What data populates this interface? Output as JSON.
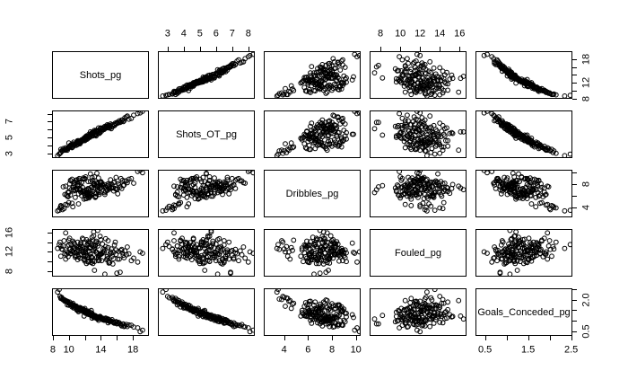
{
  "figure": {
    "background": "#ffffff",
    "foreground": "#000000",
    "description": "R pairs() scatterplot matrix of per-game football statistics"
  },
  "chart_data": {
    "type": "scatter",
    "subtype": "scatterplot-matrix",
    "title": "",
    "legend": "none",
    "grid": false,
    "variables": [
      "Shots_pg",
      "Shots_OT_pg",
      "Dribbles_pg",
      "Fouled_pg",
      "Goals_Conceded_pg"
    ],
    "axis_domains": [
      [
        7.9,
        20.0
      ],
      [
        2.4,
        8.4
      ],
      [
        2.3,
        10.4
      ],
      [
        6.9,
        16.7
      ],
      [
        0.28,
        2.53
      ]
    ],
    "axes": [
      {
        "side": "top",
        "index": 1,
        "var": 1,
        "ticks": [
          3,
          4,
          5,
          6,
          7,
          8
        ],
        "labels": [
          "3",
          "4",
          "5",
          "6",
          "7",
          "8"
        ]
      },
      {
        "side": "top",
        "index": 3,
        "var": 3,
        "ticks": [
          8,
          10,
          12,
          14,
          16
        ],
        "labels": [
          "8",
          "10",
          "12",
          "14",
          "16"
        ]
      },
      {
        "side": "bottom",
        "index": 0,
        "var": 0,
        "ticks": [
          8,
          10,
          12,
          14,
          16,
          18
        ],
        "labels": [
          "8",
          "10",
          "",
          "14",
          "",
          "18"
        ]
      },
      {
        "side": "bottom",
        "index": 2,
        "var": 2,
        "ticks": [
          4,
          6,
          8,
          10
        ],
        "labels": [
          "4",
          "6",
          "8",
          "10"
        ]
      },
      {
        "side": "bottom",
        "index": 4,
        "var": 4,
        "ticks": [
          0.5,
          1,
          1.5,
          2,
          2.5
        ],
        "labels": [
          "0.5",
          "",
          "1.5",
          "",
          "2.5"
        ]
      },
      {
        "side": "left",
        "index": 1,
        "var": 1,
        "ticks": [
          3,
          4,
          5,
          6,
          7,
          8
        ],
        "labels": [
          "3",
          "",
          "5",
          "",
          "7",
          ""
        ]
      },
      {
        "side": "left",
        "index": 3,
        "var": 3,
        "ticks": [
          8,
          10,
          12,
          14,
          16
        ],
        "labels": [
          "8",
          "",
          "12",
          "",
          "16"
        ]
      },
      {
        "side": "right",
        "index": 0,
        "var": 0,
        "ticks": [
          8,
          10,
          12,
          14,
          16,
          18
        ],
        "labels": [
          "8",
          "",
          "12",
          "",
          "",
          "18"
        ]
      },
      {
        "side": "right",
        "index": 2,
        "var": 2,
        "ticks": [
          4,
          6,
          8,
          10
        ],
        "labels": [
          "4",
          "",
          "8",
          ""
        ]
      },
      {
        "side": "right",
        "index": 4,
        "var": 4,
        "ticks": [
          0.5,
          1,
          1.5,
          2,
          2.5
        ],
        "labels": [
          "0.5",
          "",
          "",
          "2.0",
          ""
        ]
      }
    ],
    "point_style": {
      "shape": "open-circle",
      "color": "#000000",
      "radius": 2.4
    },
    "records": [
      [
        11.2,
        4.6,
        6.3,
        12.0,
        1.42
      ],
      [
        13.5,
        5.8,
        7.6,
        10.9,
        1.1
      ],
      [
        9.8,
        3.6,
        5.9,
        13.2,
        1.75
      ],
      [
        15.1,
        6.2,
        7.1,
        11.5,
        0.95
      ],
      [
        12.4,
        5.1,
        8.4,
        14.1,
        1.3
      ],
      [
        10.6,
        4.0,
        6.8,
        12.7,
        1.6
      ],
      [
        17.8,
        7.4,
        8.9,
        10.2,
        0.78
      ],
      [
        11.9,
        4.9,
        5.4,
        11.1,
        1.22
      ],
      [
        14.2,
        6.0,
        7.9,
        13.6,
        1.05
      ],
      [
        12.8,
        5.3,
        6.1,
        9.8,
        1.48
      ],
      [
        10.1,
        3.9,
        7.3,
        14.8,
        1.88
      ],
      [
        13.1,
        5.5,
        8.1,
        12.3,
        1.15
      ],
      [
        16.4,
        6.9,
        7.5,
        7.8,
        0.85
      ],
      [
        11.5,
        4.4,
        6.6,
        13.9,
        1.55
      ],
      [
        12.1,
        4.8,
        9.2,
        11.8,
        1.35
      ],
      [
        9.2,
        3.3,
        3.6,
        12.5,
        2.02
      ],
      [
        14.8,
        6.4,
        6.9,
        10.6,
        1.0
      ],
      [
        13.9,
        5.6,
        7.2,
        15.2,
        1.18
      ],
      [
        10.9,
        4.2,
        8.6,
        11.3,
        1.7
      ],
      [
        18.6,
        8.0,
        10.1,
        9.9,
        0.66
      ],
      [
        12.6,
        5.0,
        6.4,
        12.9,
        1.28
      ],
      [
        11.1,
        4.5,
        7.7,
        10.4,
        1.52
      ],
      [
        15.6,
        6.6,
        8.2,
        11.9,
        0.92
      ],
      [
        13.3,
        5.4,
        5.7,
        13.4,
        1.24
      ],
      [
        9.5,
        3.5,
        6.2,
        11.6,
        1.92
      ],
      [
        12.2,
        5.2,
        7.0,
        14.5,
        1.38
      ],
      [
        16.9,
        7.1,
        7.8,
        10.8,
        0.72
      ],
      [
        10.4,
        3.8,
        8.8,
        12.2,
        1.65
      ],
      [
        14.5,
        6.1,
        6.5,
        7.4,
        1.08
      ],
      [
        11.7,
        4.7,
        7.4,
        13.0,
        1.45
      ],
      [
        13.7,
        5.9,
        9.0,
        11.2,
        1.02
      ],
      [
        8.9,
        3.0,
        3.9,
        14.0,
        2.15
      ],
      [
        15.3,
        6.3,
        7.3,
        12.6,
        0.98
      ],
      [
        12.0,
        4.9,
        6.0,
        10.1,
        1.58
      ],
      [
        10.7,
        4.1,
        8.3,
        13.7,
        1.72
      ],
      [
        17.2,
        7.6,
        8.5,
        11.4,
        0.82
      ],
      [
        13.0,
        5.2,
        6.7,
        9.6,
        1.2
      ],
      [
        11.4,
        4.3,
        7.1,
        12.8,
        1.62
      ],
      [
        14.9,
        6.5,
        8.0,
        14.3,
        0.9
      ],
      [
        9.9,
        3.7,
        5.8,
        11.0,
        1.85
      ],
      [
        12.9,
        5.6,
        7.5,
        13.3,
        1.12
      ],
      [
        16.1,
        6.8,
        6.3,
        10.5,
        0.88
      ],
      [
        11.0,
        4.4,
        8.7,
        12.1,
        1.5
      ],
      [
        13.6,
        5.7,
        7.0,
        16.4,
        1.08
      ],
      [
        10.2,
        4.0,
        6.1,
        11.7,
        1.78
      ],
      [
        15.9,
        6.7,
        9.1,
        12.4,
        0.95
      ],
      [
        12.5,
        5.0,
        5.6,
        10.0,
        1.32
      ],
      [
        9.0,
        3.1,
        4.2,
        13.1,
        2.08
      ],
      [
        14.0,
        6.2,
        8.4,
        11.5,
        1.15
      ],
      [
        11.8,
        4.6,
        6.8,
        14.6,
        1.42
      ],
      [
        13.2,
        5.3,
        7.7,
        8.2,
        1.25
      ],
      [
        10.5,
        4.2,
        4.1,
        12.0,
        1.68
      ],
      [
        18.1,
        7.8,
        8.1,
        10.7,
        0.7
      ],
      [
        12.3,
        4.8,
        6.6,
        13.5,
        1.35
      ],
      [
        15.4,
        6.6,
        7.9,
        11.1,
        1.05
      ],
      [
        11.3,
        4.5,
        8.9,
        12.3,
        1.48
      ],
      [
        13.8,
        5.5,
        6.2,
        10.3,
        1.18
      ],
      [
        9.6,
        3.4,
        7.6,
        15.9,
        1.95
      ],
      [
        14.4,
        6.0,
        7.4,
        11.8,
        1.02
      ],
      [
        12.7,
        5.4,
        9.7,
        13.8,
        1.28
      ],
      [
        10.8,
        4.1,
        6.9,
        10.9,
        1.62
      ],
      [
        16.6,
        7.2,
        7.2,
        12.5,
        0.75
      ],
      [
        11.6,
        4.7,
        8.2,
        11.4,
        1.55
      ],
      [
        13.4,
        5.8,
        5.9,
        14.2,
        1.2
      ],
      [
        8.6,
        2.7,
        3.4,
        12.7,
        2.35
      ],
      [
        15.0,
        6.3,
        7.8,
        9.7,
        0.98
      ],
      [
        12.1,
        5.1,
        6.5,
        11.2,
        1.4
      ],
      [
        10.3,
        3.9,
        8.5,
        13.6,
        1.75
      ],
      [
        14.7,
        6.4,
        7.1,
        10.4,
        1.1
      ],
      [
        11.2,
        4.3,
        4.6,
        12.9,
        1.58
      ],
      [
        13.1,
        5.7,
        7.3,
        16.1,
        1.22
      ],
      [
        17.5,
        7.3,
        8.8,
        11.6,
        0.8
      ],
      [
        12.4,
        5.2,
        6.0,
        9.9,
        1.45
      ],
      [
        9.3,
        3.6,
        7.5,
        13.2,
        1.98
      ],
      [
        16.2,
        6.9,
        8.0,
        12.1,
        0.92
      ],
      [
        11.9,
        4.8,
        6.7,
        10.6,
        1.52
      ],
      [
        13.5,
        5.4,
        9.8,
        11.9,
        1.15
      ],
      [
        10.0,
        3.8,
        4.8,
        14.4,
        1.82
      ],
      [
        14.3,
        6.1,
        7.6,
        12.6,
        1.05
      ],
      [
        12.8,
        5.5,
        6.3,
        11.0,
        1.3
      ],
      [
        15.7,
        6.5,
        8.3,
        13.4,
        0.88
      ],
      [
        11.5,
        4.4,
        7.0,
        12.2,
        1.6
      ],
      [
        13.0,
        5.6,
        8.6,
        10.1,
        1.25
      ],
      [
        9.7,
        3.5,
        6.1,
        11.5,
        1.9
      ],
      [
        14.6,
        6.2,
        7.4,
        14.7,
        1.12
      ],
      [
        12.2,
        4.9,
        5.5,
        12.8,
        1.38
      ],
      [
        16.8,
        7.0,
        7.7,
        11.3,
        0.85
      ],
      [
        10.6,
        4.2,
        8.1,
        13.9,
        1.7
      ],
      [
        13.7,
        5.9,
        6.6,
        10.8,
        1.18
      ],
      [
        11.1,
        4.6,
        7.9,
        12.4,
        1.48
      ],
      [
        19.2,
        8.3,
        9.9,
        11.7,
        0.55
      ],
      [
        12.6,
        5.1,
        6.2,
        14.1,
        1.32
      ],
      [
        10.9,
        4.0,
        7.2,
        11.1,
        1.65
      ],
      [
        15.2,
        6.7,
        8.7,
        12.0,
        1.0
      ],
      [
        13.3,
        5.3,
        5.8,
        13.3,
        1.22
      ],
      [
        9.1,
        3.3,
        4.0,
        12.6,
        2.1
      ],
      [
        14.1,
        6.0,
        7.5,
        10.2,
        1.08
      ],
      [
        11.8,
        4.7,
        9.0,
        11.8,
        1.55
      ],
      [
        12.9,
        5.5,
        6.4,
        15.0,
        1.28
      ],
      [
        16.3,
        7.1,
        7.8,
        10.5,
        0.9
      ],
      [
        10.4,
        3.7,
        4.7,
        12.3,
        1.78
      ],
      [
        13.6,
        5.8,
        8.2,
        13.7,
        1.15
      ],
      [
        11.4,
        4.5,
        6.9,
        11.4,
        1.5
      ],
      [
        15.5,
        6.4,
        7.3,
        9.5,
        0.95
      ],
      [
        12.0,
        5.0,
        8.8,
        12.7,
        1.42
      ],
      [
        9.4,
        3.4,
        3.8,
        14.3,
        2.0
      ],
      [
        14.8,
        6.6,
        7.7,
        11.0,
        1.02
      ],
      [
        12.5,
        5.2,
        5.9,
        10.7,
        1.35
      ],
      [
        17.0,
        7.5,
        8.5,
        12.2,
        0.76
      ],
      [
        11.0,
        4.3,
        7.1,
        13.0,
        1.62
      ],
      [
        13.9,
        5.7,
        6.5,
        11.6,
        1.2
      ],
      [
        10.1,
        3.9,
        8.0,
        12.5,
        1.8
      ],
      [
        15.8,
        6.8,
        7.2,
        14.0,
        0.92
      ],
      [
        12.3,
        4.8,
        6.1,
        11.2,
        1.45
      ],
      [
        13.2,
        5.6,
        9.2,
        10.0,
        1.18
      ],
      [
        8.8,
        2.9,
        3.5,
        13.5,
        2.48
      ],
      [
        14.4,
        6.3,
        7.9,
        12.1,
        1.05
      ],
      [
        11.7,
        4.6,
        6.7,
        14.8,
        1.52
      ],
      [
        12.7,
        5.3,
        8.4,
        11.5,
        1.3
      ],
      [
        16.0,
        6.9,
        7.0,
        7.6,
        0.85
      ],
      [
        10.7,
        4.1,
        7.8,
        12.8,
        1.72
      ],
      [
        13.4,
        5.9,
        6.3,
        11.9,
        1.12
      ],
      [
        11.3,
        4.4,
        8.3,
        13.1,
        1.58
      ],
      [
        15.1,
        6.5,
        7.6,
        9.8,
        1.0
      ],
      [
        12.1,
        4.7,
        5.5,
        12.4,
        1.48
      ],
      [
        9.9,
        3.6,
        6.6,
        11.7,
        1.88
      ],
      [
        14.0,
        6.1,
        8.1,
        14.5,
        1.1
      ],
      [
        12.8,
        5.4,
        7.4,
        10.9,
        1.25
      ],
      [
        18.9,
        8.1,
        10.3,
        12.0,
        0.48
      ],
      [
        11.6,
        4.5,
        6.0,
        13.3,
        1.55
      ],
      [
        13.8,
        5.8,
        7.7,
        11.3,
        1.15
      ],
      [
        10.2,
        4.0,
        8.6,
        12.6,
        1.75
      ],
      [
        15.6,
        6.6,
        6.8,
        10.6,
        0.9
      ],
      [
        12.4,
        5.1,
        7.2,
        13.8,
        1.38
      ],
      [
        9.0,
        3.5,
        4.3,
        11.1,
        2.05
      ],
      [
        14.9,
        6.2,
        8.0,
        12.9,
        1.08
      ],
      [
        11.9,
        4.9,
        6.4,
        10.4,
        1.5
      ],
      [
        13.1,
        5.5,
        7.9,
        15.3,
        1.2
      ],
      [
        10.8,
        4.2,
        5.7,
        11.8,
        1.68
      ],
      [
        16.5,
        7.0,
        8.9,
        12.3,
        0.8
      ],
      [
        12.2,
        5.0,
        6.9,
        9.6,
        1.4
      ],
      [
        13.6,
        5.7,
        7.5,
        13.2,
        1.18
      ],
      [
        11.2,
        4.4,
        8.7,
        11.0,
        1.6
      ],
      [
        14.5,
        6.4,
        6.2,
        12.5,
        1.02
      ],
      [
        10.5,
        3.8,
        7.4,
        14.2,
        1.82
      ],
      [
        12.9,
        5.2,
        9.1,
        10.8,
        1.35
      ],
      [
        15.9,
        6.7,
        7.1,
        11.5,
        0.95
      ],
      [
        11.5,
        4.6,
        6.6,
        13.6,
        1.58
      ],
      [
        13.3,
        5.6,
        8.5,
        12.2,
        1.22
      ],
      [
        9.6,
        3.7,
        4.5,
        10.5,
        1.95
      ],
      [
        14.2,
        6.0,
        7.8,
        11.9,
        1.12
      ],
      [
        12.6,
        5.3,
        5.8,
        12.7,
        1.42
      ],
      [
        17.3,
        7.7,
        8.2,
        13.0,
        0.72
      ],
      [
        10.3,
        4.1,
        7.0,
        11.6,
        1.78
      ],
      [
        13.0,
        5.4,
        6.7,
        14.4,
        1.28
      ],
      [
        11.8,
        4.8,
        8.8,
        12.1,
        1.48
      ],
      [
        15.0,
        6.5,
        7.3,
        10.1,
        1.05
      ],
      [
        12.3,
        5.1,
        6.1,
        13.4,
        1.4
      ],
      [
        9.8,
        3.4,
        4.4,
        12.0,
        1.92
      ],
      [
        13.9,
        6.1,
        8.3,
        11.4,
        1.18
      ],
      [
        12.5,
        5.4,
        7.1,
        12.1,
        1.33
      ],
      [
        14.6,
        6.3,
        6.7,
        13.1,
        1.07
      ],
      [
        11.4,
        4.2,
        7.8,
        10.7,
        1.57
      ],
      [
        13.2,
        5.9,
        8.0,
        12.8,
        1.21
      ],
      [
        10.0,
        4.3,
        6.5,
        13.4,
        1.73
      ],
      [
        15.3,
        6.1,
        7.4,
        11.7,
        0.97
      ],
      [
        12.0,
        4.6,
        8.9,
        12.2,
        1.44
      ],
      [
        13.7,
        6.2,
        6.8,
        10.2,
        1.16
      ],
      [
        11.1,
        4.1,
        7.6,
        14.0,
        1.63
      ],
      [
        16.7,
        7.2,
        8.6,
        11.8,
        0.83
      ],
      [
        12.7,
        5.7,
        5.9,
        13.0,
        1.27
      ],
      [
        10.6,
        4.4,
        7.0,
        12.4,
        1.69
      ],
      [
        14.1,
        5.8,
        8.2,
        11.6,
        1.11
      ],
      [
        12.3,
        5.0,
        6.3,
        10.9,
        1.39
      ],
      [
        13.4,
        5.2,
        7.7,
        13.9,
        1.19
      ]
    ]
  }
}
